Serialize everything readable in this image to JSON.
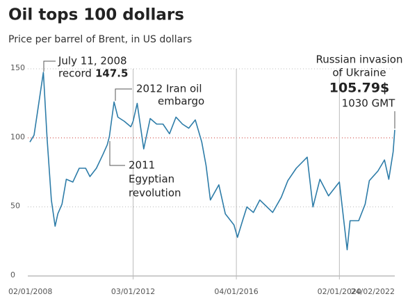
{
  "chart_data": {
    "type": "line",
    "title": "Oil tops 100 dollars",
    "subtitle": "Price per barrel of Brent, in US dollars",
    "x": [
      "02/01/2008",
      "01/03/2008",
      "01/05/2008",
      "11/07/2008",
      "01/09/2008",
      "01/11/2008",
      "24/12/2008",
      "01/02/2009",
      "01/04/2009",
      "01/06/2009",
      "01/09/2009",
      "01/12/2009",
      "01/03/2010",
      "01/05/2010",
      "01/08/2010",
      "01/11/2010",
      "01/01/2011",
      "01/02/2011",
      "08/04/2011",
      "01/06/2011",
      "01/09/2011",
      "01/12/2011",
      "03/01/2012",
      "01/03/2012",
      "01/06/2012",
      "01/09/2012",
      "01/12/2012",
      "01/03/2013",
      "01/06/2013",
      "01/09/2013",
      "01/12/2013",
      "01/03/2014",
      "01/06/2014",
      "01/09/2014",
      "01/11/2014",
      "01/01/2015",
      "01/05/2015",
      "01/08/2015",
      "01/12/2015",
      "20/01/2016",
      "01/04/2016",
      "01/06/2016",
      "01/09/2016",
      "01/12/2016",
      "01/06/2017",
      "01/10/2017",
      "01/01/2018",
      "01/05/2018",
      "03/10/2018",
      "24/12/2018",
      "01/04/2019",
      "01/08/2019",
      "01/12/2019",
      "02/01/2020",
      "21/04/2020",
      "01/06/2020",
      "01/10/2020",
      "01/01/2021",
      "01/03/2021",
      "01/07/2021",
      "01/10/2021",
      "01/12/2021",
      "01/02/2022",
      "24/02/2022"
    ],
    "series": [
      {
        "name": "Brent",
        "color": "#2d7ca8",
        "values": [
          97,
          102,
          123,
          147.5,
          100,
          55,
          36,
          45,
          52,
          70,
          68,
          78,
          78,
          72,
          78,
          88,
          95,
          101,
          126,
          115,
          112,
          108,
          112,
          125,
          92,
          114,
          110,
          110,
          103,
          115,
          110,
          107,
          113,
          97,
          80,
          55,
          66,
          45,
          37,
          28,
          40,
          50,
          46,
          55,
          46,
          57,
          69,
          78,
          86,
          50,
          70,
          58,
          66,
          68,
          19,
          40,
          40,
          52,
          69,
          76,
          84,
          70,
          90,
          105.79
        ]
      }
    ],
    "xticks": [
      "02/01/2008",
      "03/01/2012",
      "04/01/2016",
      "02/01/2020",
      "24/02/2022"
    ],
    "ylim": [
      0,
      150
    ],
    "yticks": [
      0,
      50,
      100,
      150
    ],
    "grid": true,
    "reference_line": {
      "y": 100,
      "color": "#d9534f"
    },
    "annotations": [
      {
        "lines": [
          "July 11, 2008",
          "record"
        ],
        "emphasis": "147.5"
      },
      {
        "lines": [
          "2012 Iran oil",
          "embargo"
        ]
      },
      {
        "lines": [
          "2011",
          "Egyptian",
          "revolution"
        ]
      },
      {
        "lines": [
          "Russian invasion",
          "of Ukraine",
          "1030 GMT"
        ],
        "emphasis": "105.79$"
      }
    ]
  }
}
